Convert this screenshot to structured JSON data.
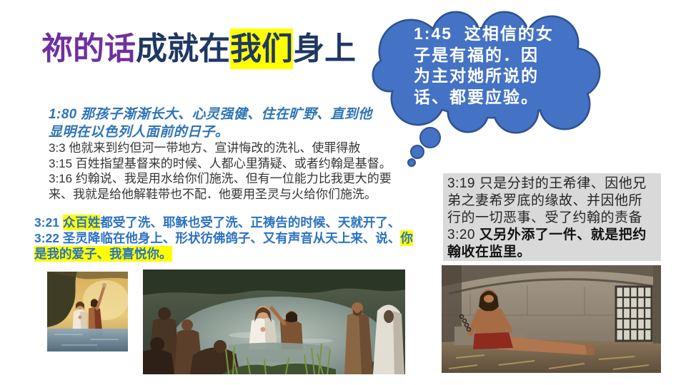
{
  "slide": {
    "title": {
      "part1": "祢的话",
      "part2": "成就在",
      "highlight": "我们",
      "part4": "身上"
    },
    "bubble": {
      "lines": [
        "1:45  这相信的女",
        "子是有福的．因",
        "为主对她所说的",
        "话、都要应验。"
      ]
    },
    "verse_1_80": {
      "lines": [
        "1:80 那孩子渐渐长大、心灵强健、住在旷野、直到他",
        "显明在以色列人面前的日子。"
      ]
    },
    "verses_3_3_to_3_16": {
      "lines": [
        "3:3 他就来到约但河一带地方、宣讲悔改的洗礼、使罪得赦",
        "3:15 百姓指望基督来的时候、人都心里猜疑、或者约翰是基督。",
        "3:16 约翰说、我是用水给你们施洗、但有一位能力比我更大的要",
        "来、我就是给他解鞋带也不配．他要用圣灵与火给你们施洗。"
      ]
    },
    "verses_3_21_22": {
      "line1_prefix": "3:21 ",
      "line1_highlight": "众百姓",
      "line1_rest": "都受了洗、耶稣也受了洗、正祷告的时候、天就开了、",
      "line2_text": "3:22 圣灵降临在他身上、形状彷佛鸽子、又有声音从天上来、说、",
      "line2_highlight": "你",
      "line3_highlight": "是我的爱子、我喜悦你。"
    },
    "verses_3_19_20": {
      "line1": "3:19 只是分封的王希律、因他兄",
      "line2": "弟之妻希罗底的缘故、并因他所",
      "line3": "行的一切恶事、受了约翰的责备",
      "line4_prefix": "3:20 ",
      "line4_bold": "又另外添了一件、就是把约",
      "line5_bold": "翰收在监里。"
    }
  },
  "colors": {
    "title_purple": "#7030A0",
    "title_navy": "#1F3864",
    "highlight": "#FFFF00",
    "bubble_fill": "#4472C4",
    "bubble_stroke": "#2F528F",
    "verse_blue": "#2E75B6",
    "verse_blue_2": "#2A72C2",
    "box_gray": "#D9D9D9"
  }
}
